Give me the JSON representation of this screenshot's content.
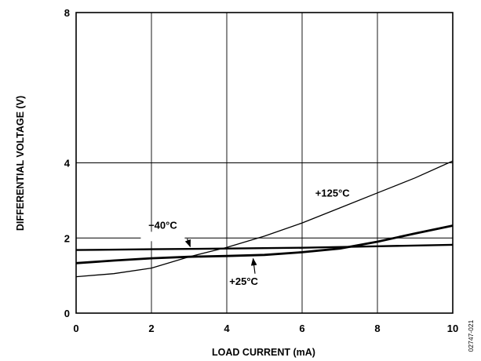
{
  "chart_data": {
    "type": "line",
    "xlabel": "LOAD CURRENT (mA)",
    "ylabel": "DIFFERENTIAL VOLTAGE (V)",
    "xlim": [
      0,
      10
    ],
    "ylim": [
      0,
      8
    ],
    "x_ticks": [
      "0",
      "2",
      "4",
      "6",
      "8",
      "10"
    ],
    "y_ticks": [
      "0",
      "2",
      "4",
      "8"
    ],
    "y_tick_values": [
      0,
      2,
      4,
      8
    ],
    "grid": true,
    "series": [
      {
        "name": "+125°C",
        "x": [
          0,
          1,
          2,
          3,
          4,
          5,
          6,
          7,
          8,
          9,
          10
        ],
        "y": [
          0.97,
          1.05,
          1.2,
          1.5,
          1.75,
          2.05,
          2.4,
          2.8,
          3.2,
          3.6,
          4.05
        ]
      },
      {
        "name": "−40°C",
        "x": [
          0,
          2,
          4,
          6,
          8,
          10
        ],
        "y": [
          1.68,
          1.7,
          1.72,
          1.74,
          1.78,
          1.82
        ]
      },
      {
        "name": "+25°C",
        "x": [
          0,
          1,
          2,
          3,
          4,
          5,
          6,
          7,
          8,
          9,
          10
        ],
        "y": [
          1.33,
          1.4,
          1.46,
          1.5,
          1.52,
          1.55,
          1.62,
          1.72,
          1.9,
          2.12,
          2.33
        ]
      }
    ],
    "annotations": [
      {
        "text": "+125°C",
        "series": 0
      },
      {
        "text": "−40°C",
        "series": 1
      },
      {
        "text": "+25°C",
        "series": 2
      }
    ],
    "figure_id": "02747-021"
  }
}
